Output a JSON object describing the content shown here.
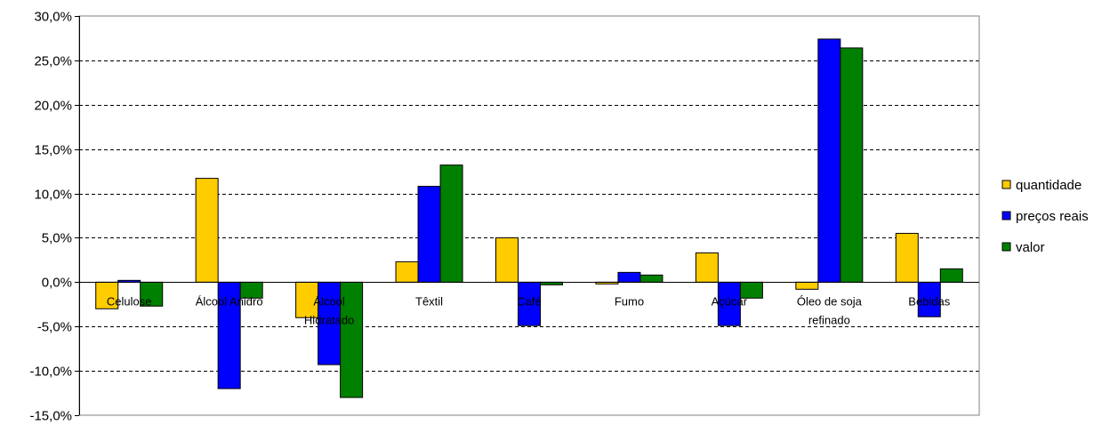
{
  "chart_data": {
    "type": "bar",
    "categories": [
      [
        "Celulose"
      ],
      [
        "Álcool Anidro"
      ],
      [
        "Álcool",
        "Hidratado"
      ],
      [
        "Têxtil"
      ],
      [
        "Café"
      ],
      [
        "Fumo"
      ],
      [
        "Açúcar"
      ],
      [
        "Óleo de soja",
        "refinado"
      ],
      [
        "Bebidas"
      ]
    ],
    "series": [
      {
        "name": "quantidade",
        "color": "#FFCC00",
        "values": [
          -3.0,
          11.7,
          -4.0,
          2.3,
          5.0,
          -0.2,
          3.3,
          -0.8,
          5.5
        ]
      },
      {
        "name": "preços reais",
        "color": "#0000FF",
        "values": [
          0.2,
          -12.0,
          -9.3,
          10.8,
          -4.9,
          1.1,
          -4.9,
          27.4,
          -3.9
        ]
      },
      {
        "name": "valor",
        "color": "#008000",
        "values": [
          -2.7,
          -1.8,
          -13.0,
          13.2,
          -0.3,
          0.8,
          -1.8,
          26.4,
          1.5
        ]
      }
    ],
    "ylim": [
      -15,
      30
    ],
    "ystep": 5,
    "ytick_labels": [
      "-15,0%",
      "-10,0%",
      "-5,0%",
      "0,0%",
      "5,0%",
      "10,0%",
      "15,0%",
      "20,0%",
      "25,0%",
      "30,0%"
    ],
    "grid": true,
    "legend_position": "right",
    "title": "",
    "xlabel": "",
    "ylabel": ""
  }
}
